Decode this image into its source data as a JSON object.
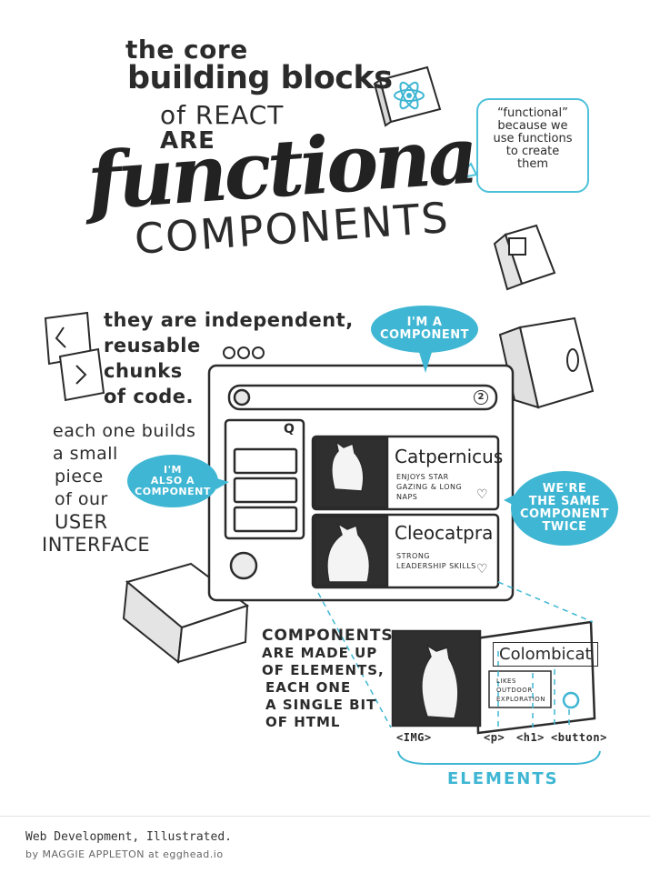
{
  "title": {
    "line1": "the core",
    "line2": "building blocks",
    "line3": "of REACT",
    "line4": "ARE",
    "line5": "functional",
    "line6": "COMPONENTS"
  },
  "functional_note": [
    "“functional”",
    "because we",
    "use functions",
    "to create",
    "them"
  ],
  "intro_text": [
    "they are independent,",
    "reusable",
    "chunks",
    "of code."
  ],
  "builds_text": [
    "each one builds",
    "a small",
    "piece",
    "of our",
    "USER",
    "INTERFACE"
  ],
  "bubbles": {
    "component": [
      "I'M A",
      "COMPONENT"
    ],
    "also_component": [
      "I'M",
      "ALSO A",
      "COMPONENT"
    ],
    "same_twice": [
      "WE'RE",
      "THE SAME",
      "COMPONENT",
      "TWICE"
    ]
  },
  "window": {
    "badge": "2",
    "search_glyph": "Q"
  },
  "cards": [
    {
      "name": "Catpernicus",
      "desc": [
        "ENJOYS STAR",
        "GAZING & LONG",
        "NAPS"
      ]
    },
    {
      "name": "Cleocatpra",
      "desc": [
        "STRONG",
        "LEADERSHIP SKILLS"
      ]
    }
  ],
  "elements_text": [
    "COMPONENTS",
    "ARE MADE UP",
    "OF ELEMENTS,",
    "EACH ONE",
    "A SINGLE BIT",
    "OF HTML"
  ],
  "zoom_card": {
    "name": "Colombicat",
    "desc": [
      "LIKES",
      "OUTDOOR",
      "EXPLORATION"
    ]
  },
  "tags": {
    "img": "<IMG>",
    "p": "<p>",
    "h1": "<h1>",
    "button": "<button>"
  },
  "elements_label": "ELEMENTS",
  "footer": {
    "title": "Web Development, Illustrated.",
    "byline": "by MAGGIE APPLETON at egghead.io"
  },
  "colors": {
    "accent": "#3fb6d3",
    "ink": "#2b2b2b",
    "cube_fill": "#ffffff"
  }
}
